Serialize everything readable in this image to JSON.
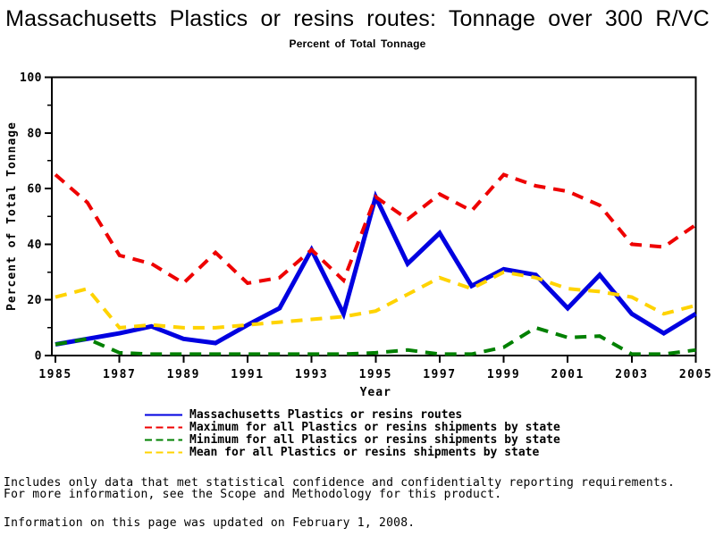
{
  "page": {
    "title": "Massachusetts Plastics or resins routes: Tonnage over 300 R/VC",
    "subtitle": "Percent of Total Tonnage"
  },
  "chart_data": {
    "type": "line",
    "title": "Massachusetts Plastics or resins routes: Tonnage over 300 R/VC",
    "subtitle": "Percent of Total Tonnage",
    "xlabel": "Year",
    "ylabel": "Percent of Total Tonnage",
    "xlim": [
      1985,
      2005
    ],
    "ylim": [
      0,
      100
    ],
    "grid": false,
    "legend_position": "bottom",
    "xticks": [
      1985,
      1987,
      1989,
      1991,
      1993,
      1995,
      1997,
      1999,
      2001,
      2003,
      2005
    ],
    "yticks_major": [
      0,
      20,
      40,
      60,
      80,
      100
    ],
    "yticks_minor": [
      10,
      30,
      50,
      70,
      90
    ],
    "x": [
      1985,
      1986,
      1987,
      1988,
      1989,
      1990,
      1991,
      1992,
      1993,
      1994,
      1995,
      1996,
      1997,
      1998,
      1999,
      2000,
      2001,
      2002,
      2003,
      2004,
      2005
    ],
    "series": [
      {
        "name": "Massachusetts Plastics or resins routes",
        "color": "#0000e0",
        "style": "solid",
        "values": [
          4,
          6,
          8,
          10.5,
          6,
          4.5,
          11,
          17,
          38,
          15,
          57,
          33,
          44,
          25,
          31,
          29,
          17,
          29,
          15,
          8,
          15
        ]
      },
      {
        "name": "Maximum for all Plastics or resins shipments by state",
        "color": "#ee0000",
        "style": "dashed",
        "values": [
          65,
          55,
          36,
          33,
          26,
          37,
          26,
          28,
          38,
          27,
          57,
          49,
          58,
          52,
          65,
          61,
          59,
          54,
          40,
          39,
          47
        ]
      },
      {
        "name": "Minimum for all Plastics or resins shipments by state",
        "color": "#008000",
        "style": "dashed",
        "values": [
          4,
          6,
          1,
          0.5,
          0.5,
          0.5,
          0.5,
          0.5,
          0.5,
          0.5,
          1,
          2,
          0.5,
          0.5,
          3,
          10,
          6.5,
          7,
          0.5,
          0.5,
          2
        ]
      },
      {
        "name": "Mean for all Plastics or resins shipments by state",
        "color": "#ffd300",
        "style": "dashed",
        "values": [
          21,
          24,
          10,
          11,
          10,
          10,
          11,
          12,
          13,
          14,
          16,
          22,
          28,
          24,
          30,
          28,
          24,
          23,
          21,
          15,
          18
        ]
      }
    ]
  },
  "footnotes": {
    "line1": "Includes only data that met statistical confidence and confidentialty reporting requirements.",
    "line2": "For more information, see the Scope and Methodology for this product.",
    "updated": "Information on this page was updated on February 1, 2008."
  }
}
